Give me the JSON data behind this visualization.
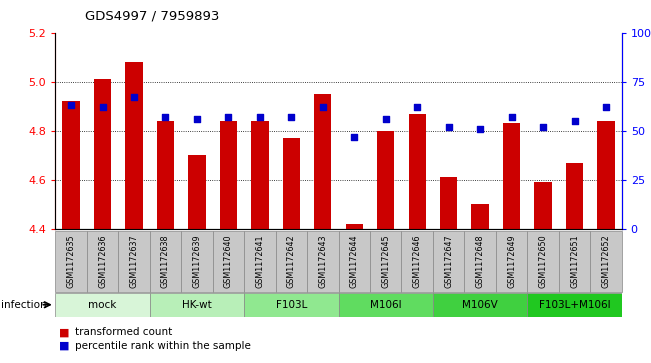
{
  "title": "GDS4997 / 7959893",
  "samples": [
    "GSM1172635",
    "GSM1172636",
    "GSM1172637",
    "GSM1172638",
    "GSM1172639",
    "GSM1172640",
    "GSM1172641",
    "GSM1172642",
    "GSM1172643",
    "GSM1172644",
    "GSM1172645",
    "GSM1172646",
    "GSM1172647",
    "GSM1172648",
    "GSM1172649",
    "GSM1172650",
    "GSM1172651",
    "GSM1172652"
  ],
  "bar_values": [
    4.92,
    5.01,
    5.08,
    4.84,
    4.7,
    4.84,
    4.84,
    4.77,
    4.95,
    4.42,
    4.8,
    4.87,
    4.61,
    4.5,
    4.83,
    4.59,
    4.67,
    4.84
  ],
  "percentile_values": [
    63,
    62,
    67,
    57,
    56,
    57,
    57,
    57,
    62,
    47,
    56,
    62,
    52,
    51,
    57,
    52,
    55,
    62
  ],
  "bar_bottom": 4.4,
  "ylim_left": [
    4.4,
    5.2
  ],
  "ylim_right": [
    0,
    100
  ],
  "yticks_left": [
    4.4,
    4.6,
    4.8,
    5.0,
    5.2
  ],
  "yticks_right": [
    0,
    25,
    50,
    75,
    100
  ],
  "ytick_labels_right": [
    "0",
    "25",
    "50",
    "75",
    "100%"
  ],
  "bar_color": "#cc0000",
  "dot_color": "#0000cc",
  "groups": [
    {
      "label": "mock",
      "indices": [
        0,
        1,
        2
      ],
      "color": "#d8f5d8"
    },
    {
      "label": "HK-wt",
      "indices": [
        3,
        4,
        5
      ],
      "color": "#b8efb8"
    },
    {
      "label": "F103L",
      "indices": [
        6,
        7,
        8
      ],
      "color": "#90e890"
    },
    {
      "label": "M106I",
      "indices": [
        9,
        10,
        11
      ],
      "color": "#60dc60"
    },
    {
      "label": "M106V",
      "indices": [
        12,
        13,
        14
      ],
      "color": "#40d040"
    },
    {
      "label": "F103L+M106I",
      "indices": [
        15,
        16,
        17
      ],
      "color": "#20c820"
    }
  ],
  "xlabel_infection": "infection",
  "legend_bar": "transformed count",
  "legend_dot": "percentile rank within the sample",
  "xtick_bg_color": "#c8c8c8",
  "xtick_border_color": "#888888"
}
